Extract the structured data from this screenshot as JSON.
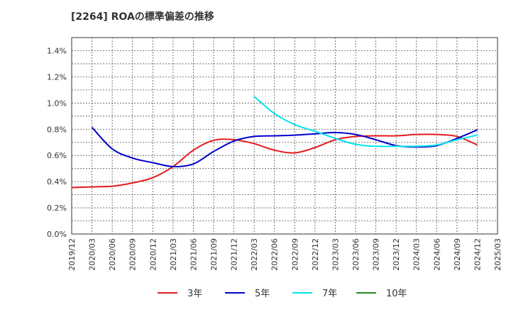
{
  "chart_data": {
    "type": "line",
    "title": "[2264]  ROAの標準偏差の推移",
    "xlabel": "",
    "ylabel": "",
    "x_ticks": [
      "2019/12",
      "2020/03",
      "2020/06",
      "2020/09",
      "2020/12",
      "2021/03",
      "2021/06",
      "2021/09",
      "2021/12",
      "2022/03",
      "2022/06",
      "2022/09",
      "2022/12",
      "2023/03",
      "2023/06",
      "2023/09",
      "2023/12",
      "2024/03",
      "2024/06",
      "2024/09",
      "2024/12",
      "2025/03"
    ],
    "y_ticks": [
      "0.0%",
      "0.2%",
      "0.4%",
      "0.6%",
      "0.8%",
      "1.0%",
      "1.2%",
      "1.4%"
    ],
    "ylim": [
      0,
      1.5
    ],
    "grid": true,
    "legend_position": "bottom",
    "series": [
      {
        "name": "3年",
        "color": "#e41a1c",
        "points": [
          [
            "2019/12",
            0.355
          ],
          [
            "2020/03",
            0.36
          ],
          [
            "2020/06",
            0.365
          ],
          [
            "2020/09",
            0.39
          ],
          [
            "2020/12",
            0.43
          ],
          [
            "2021/03",
            0.515
          ],
          [
            "2021/06",
            0.64
          ],
          [
            "2021/09",
            0.715
          ],
          [
            "2021/12",
            0.72
          ],
          [
            "2022/03",
            0.69
          ],
          [
            "2022/06",
            0.64
          ],
          [
            "2022/09",
            0.62
          ],
          [
            "2022/12",
            0.66
          ],
          [
            "2023/03",
            0.72
          ],
          [
            "2023/06",
            0.745
          ],
          [
            "2023/09",
            0.75
          ],
          [
            "2023/12",
            0.75
          ],
          [
            "2024/03",
            0.76
          ],
          [
            "2024/06",
            0.76
          ],
          [
            "2024/09",
            0.745
          ],
          [
            "2024/12",
            0.68
          ]
        ]
      },
      {
        "name": "5年",
        "color": "#0000cc",
        "points": [
          [
            "2020/03",
            0.815
          ],
          [
            "2020/06",
            0.65
          ],
          [
            "2020/09",
            0.58
          ],
          [
            "2020/12",
            0.545
          ],
          [
            "2021/03",
            0.515
          ],
          [
            "2021/06",
            0.535
          ],
          [
            "2021/09",
            0.63
          ],
          [
            "2021/12",
            0.71
          ],
          [
            "2022/03",
            0.745
          ],
          [
            "2022/06",
            0.75
          ],
          [
            "2022/09",
            0.755
          ],
          [
            "2022/12",
            0.765
          ],
          [
            "2023/03",
            0.775
          ],
          [
            "2023/06",
            0.76
          ],
          [
            "2023/09",
            0.72
          ],
          [
            "2023/12",
            0.675
          ],
          [
            "2024/03",
            0.665
          ],
          [
            "2024/06",
            0.675
          ],
          [
            "2024/09",
            0.73
          ],
          [
            "2024/12",
            0.795
          ]
        ]
      },
      {
        "name": "7年",
        "color": "#00e5ee",
        "points": [
          [
            "2022/03",
            1.05
          ],
          [
            "2022/06",
            0.92
          ],
          [
            "2022/09",
            0.835
          ],
          [
            "2022/12",
            0.785
          ],
          [
            "2023/03",
            0.73
          ],
          [
            "2023/06",
            0.685
          ],
          [
            "2023/09",
            0.67
          ],
          [
            "2023/12",
            0.67
          ],
          [
            "2024/03",
            0.67
          ],
          [
            "2024/06",
            0.68
          ],
          [
            "2024/09",
            0.72
          ],
          [
            "2024/12",
            0.755
          ]
        ]
      },
      {
        "name": "10年",
        "color": "#228b22",
        "points": []
      }
    ]
  }
}
